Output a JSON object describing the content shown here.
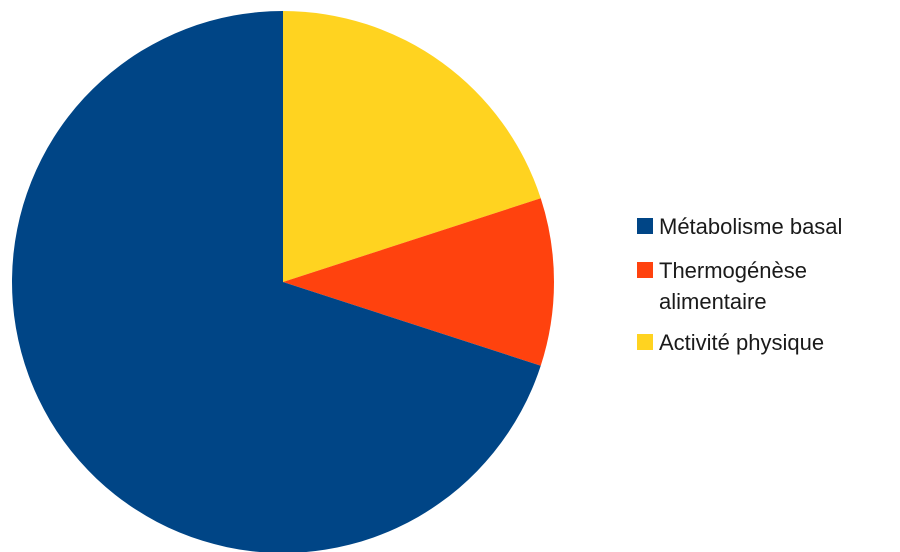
{
  "chart_data": {
    "type": "pie",
    "slices": [
      {
        "label": "Métabolisme basal",
        "label_lines": [
          "Métabolisme basal"
        ],
        "value": 70,
        "color": "#004586"
      },
      {
        "label": "Thermogénèse alimentaire",
        "label_lines": [
          "Thermogénèse",
          "alimentaire"
        ],
        "value": 10,
        "color": "#ff420e"
      },
      {
        "label": "Activité physique",
        "label_lines": [
          "Activité physique"
        ],
        "value": 20,
        "color": "#ffd320"
      }
    ],
    "start_angle_deg": 0,
    "direction": "clockwise",
    "legend_position": "right"
  }
}
